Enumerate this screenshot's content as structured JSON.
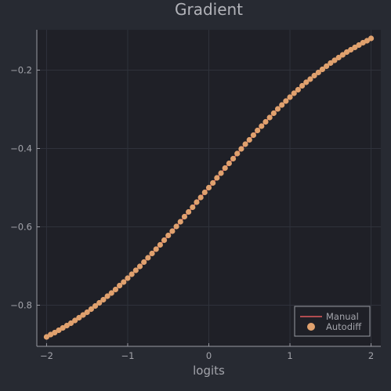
{
  "chart_data": {
    "type": "line",
    "title": "Gradient",
    "xlabel": "logits",
    "ylabel": "",
    "xlim": [
      -2.12,
      2.12
    ],
    "ylim": [
      -0.905,
      -0.097
    ],
    "xticks": [
      {
        "value": -2,
        "label": "−2"
      },
      {
        "value": -1,
        "label": "−1"
      },
      {
        "value": 0,
        "label": "0"
      },
      {
        "value": 1,
        "label": "1"
      },
      {
        "value": 2,
        "label": "2"
      }
    ],
    "yticks": [
      {
        "value": -0.8,
        "label": "−0.8"
      },
      {
        "value": -0.6,
        "label": "−0.6"
      },
      {
        "value": -0.4,
        "label": "−0.4"
      },
      {
        "value": -0.2,
        "label": "−0.2"
      }
    ],
    "grid": true,
    "legend_position": "bottom-right",
    "colors": {
      "background": "#272a32",
      "plot_background": "#1f2027",
      "grid": "#2f323b",
      "axis": "#9a9ba3",
      "text": "#a3a4ab",
      "title": "#b2b3b9",
      "manual": "#e25a5f",
      "autodiff": "#e0a16e"
    },
    "x": [
      -2.0,
      -1.95,
      -1.9,
      -1.85,
      -1.8,
      -1.75,
      -1.7,
      -1.65,
      -1.6,
      -1.55,
      -1.5,
      -1.45,
      -1.4,
      -1.35,
      -1.3,
      -1.25,
      -1.2,
      -1.15,
      -1.1,
      -1.05,
      -1.0,
      -0.95,
      -0.9,
      -0.85,
      -0.8,
      -0.75,
      -0.7,
      -0.65,
      -0.6,
      -0.55,
      -0.5,
      -0.45,
      -0.4,
      -0.35,
      -0.3,
      -0.25,
      -0.2,
      -0.15,
      -0.1,
      -0.05,
      0.0,
      0.05,
      0.1,
      0.15,
      0.2,
      0.25,
      0.3,
      0.35,
      0.4,
      0.45,
      0.5,
      0.55,
      0.6,
      0.65,
      0.7,
      0.75,
      0.8,
      0.85,
      0.9,
      0.95,
      1.0,
      1.05,
      1.1,
      1.15,
      1.2,
      1.25,
      1.3,
      1.35,
      1.4,
      1.45,
      1.5,
      1.55,
      1.6,
      1.65,
      1.7,
      1.75,
      1.8,
      1.85,
      1.9,
      1.95,
      2.0
    ],
    "series": [
      {
        "name": "Manual",
        "style": "line",
        "values": [
          -0.881,
          -0.875,
          -0.87,
          -0.864,
          -0.858,
          -0.852,
          -0.846,
          -0.839,
          -0.832,
          -0.825,
          -0.818,
          -0.81,
          -0.802,
          -0.794,
          -0.786,
          -0.777,
          -0.769,
          -0.76,
          -0.75,
          -0.741,
          -0.731,
          -0.721,
          -0.711,
          -0.701,
          -0.69,
          -0.679,
          -0.668,
          -0.657,
          -0.646,
          -0.634,
          -0.622,
          -0.611,
          -0.599,
          -0.587,
          -0.574,
          -0.562,
          -0.55,
          -0.537,
          -0.525,
          -0.512,
          -0.5,
          -0.488,
          -0.475,
          -0.463,
          -0.45,
          -0.438,
          -0.426,
          -0.413,
          -0.401,
          -0.389,
          -0.378,
          -0.366,
          -0.354,
          -0.343,
          -0.332,
          -0.321,
          -0.31,
          -0.299,
          -0.289,
          -0.279,
          -0.269,
          -0.259,
          -0.25,
          -0.24,
          -0.231,
          -0.223,
          -0.214,
          -0.206,
          -0.198,
          -0.19,
          -0.182,
          -0.175,
          -0.168,
          -0.161,
          -0.154,
          -0.148,
          -0.142,
          -0.136,
          -0.13,
          -0.125,
          -0.119
        ]
      },
      {
        "name": "Autodiff",
        "style": "scatter",
        "values": [
          -0.881,
          -0.875,
          -0.87,
          -0.864,
          -0.858,
          -0.852,
          -0.846,
          -0.839,
          -0.832,
          -0.825,
          -0.818,
          -0.81,
          -0.802,
          -0.794,
          -0.786,
          -0.777,
          -0.769,
          -0.76,
          -0.75,
          -0.741,
          -0.731,
          -0.721,
          -0.711,
          -0.701,
          -0.69,
          -0.679,
          -0.668,
          -0.657,
          -0.646,
          -0.634,
          -0.622,
          -0.611,
          -0.599,
          -0.587,
          -0.574,
          -0.562,
          -0.55,
          -0.537,
          -0.525,
          -0.512,
          -0.5,
          -0.488,
          -0.475,
          -0.463,
          -0.45,
          -0.438,
          -0.426,
          -0.413,
          -0.401,
          -0.389,
          -0.378,
          -0.366,
          -0.354,
          -0.343,
          -0.332,
          -0.321,
          -0.31,
          -0.299,
          -0.289,
          -0.279,
          -0.269,
          -0.259,
          -0.25,
          -0.24,
          -0.231,
          -0.223,
          -0.214,
          -0.206,
          -0.198,
          -0.19,
          -0.182,
          -0.175,
          -0.168,
          -0.161,
          -0.154,
          -0.148,
          -0.142,
          -0.136,
          -0.13,
          -0.125,
          -0.119
        ]
      }
    ]
  }
}
